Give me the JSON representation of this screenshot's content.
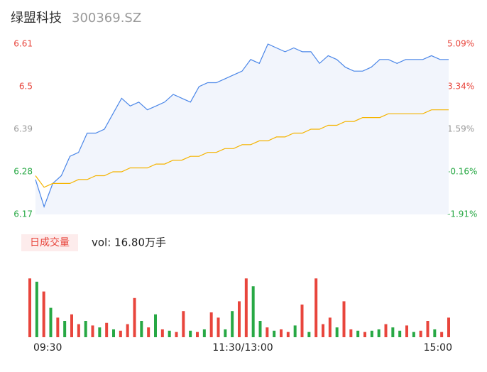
{
  "header": {
    "name": "绿盟科技",
    "code": "300369.SZ"
  },
  "chart_data": [
    {
      "type": "line",
      "x": [
        0,
        5,
        10,
        15,
        20,
        25,
        30,
        35,
        40,
        45,
        50,
        55,
        60,
        65,
        70,
        75,
        80,
        85,
        90,
        95,
        100,
        105,
        110,
        115,
        120,
        125,
        130,
        135,
        140,
        145,
        150,
        155,
        160,
        165,
        170,
        175,
        180,
        185,
        190,
        195,
        200,
        205,
        210,
        215,
        220,
        225,
        230,
        235,
        240
      ],
      "xlim": [
        0,
        240
      ],
      "series": [
        {
          "color": "#4a86e8",
          "values": [
            6.26,
            6.19,
            6.25,
            6.27,
            6.32,
            6.33,
            6.38,
            6.38,
            6.39,
            6.43,
            6.47,
            6.45,
            6.46,
            6.44,
            6.45,
            6.46,
            6.48,
            6.47,
            6.46,
            6.5,
            6.51,
            6.51,
            6.52,
            6.53,
            6.54,
            6.57,
            6.56,
            6.61,
            6.6,
            6.59,
            6.6,
            6.59,
            6.59,
            6.56,
            6.58,
            6.57,
            6.55,
            6.54,
            6.54,
            6.55,
            6.57,
            6.57,
            6.56,
            6.57,
            6.57,
            6.57,
            6.58,
            6.57,
            6.57
          ]
        },
        {
          "color": "#f5b400",
          "values": [
            6.27,
            6.24,
            6.25,
            6.25,
            6.25,
            6.26,
            6.26,
            6.27,
            6.27,
            6.28,
            6.28,
            6.29,
            6.29,
            6.29,
            6.3,
            6.3,
            6.31,
            6.31,
            6.32,
            6.32,
            6.33,
            6.33,
            6.34,
            6.34,
            6.35,
            6.35,
            6.36,
            6.36,
            6.37,
            6.37,
            6.38,
            6.38,
            6.39,
            6.39,
            6.4,
            6.4,
            6.41,
            6.41,
            6.42,
            6.42,
            6.42,
            6.43,
            6.43,
            6.43,
            6.43,
            6.43,
            6.44,
            6.44,
            6.44
          ]
        }
      ],
      "ylim": [
        6.17,
        6.61
      ],
      "yticks": [
        6.61,
        6.5,
        6.39,
        6.28,
        6.17
      ],
      "y2lim": [
        -1.91,
        5.09
      ],
      "y2ticks": [
        {
          "value": 5.09,
          "label": "5.09%"
        },
        {
          "value": 3.34,
          "label": "3.34%"
        },
        {
          "value": 1.59,
          "label": "1.59%"
        },
        {
          "value": -0.16,
          "label": "-0.16%"
        },
        {
          "value": -1.91,
          "label": "-1.91%"
        }
      ],
      "tick_colors": [
        "#e8453c",
        "#e8453c",
        "#999999",
        "#27a844",
        "#27a844"
      ]
    },
    {
      "type": "bar",
      "button": "日成交量",
      "label": "vol: 16.80万手",
      "x": [
        0,
        4,
        8,
        12,
        16,
        20,
        24,
        28,
        32,
        36,
        40,
        44,
        48,
        52,
        56,
        60,
        64,
        68,
        72,
        76,
        80,
        84,
        88,
        92,
        96,
        100,
        104,
        108,
        112,
        116,
        120,
        124,
        128,
        132,
        136,
        140,
        144,
        148,
        152,
        156,
        160,
        164,
        168,
        172,
        176,
        180,
        184,
        188,
        192,
        196,
        200,
        204,
        208,
        212,
        216,
        220,
        224,
        228,
        232,
        236,
        240
      ],
      "xlim": [
        0,
        240
      ],
      "values": [
        90,
        85,
        70,
        45,
        30,
        25,
        35,
        20,
        25,
        18,
        15,
        22,
        12,
        10,
        20,
        60,
        25,
        15,
        35,
        12,
        10,
        8,
        40,
        10,
        8,
        12,
        38,
        30,
        12,
        40,
        55,
        90,
        78,
        25,
        15,
        10,
        12,
        8,
        18,
        50,
        8,
        90,
        20,
        30,
        15,
        55,
        12,
        10,
        8,
        10,
        12,
        20,
        15,
        10,
        18,
        8,
        10,
        25,
        12,
        8,
        30
      ],
      "colors": [
        "#e8453c",
        "#27a844",
        "#e8453c",
        "#27a844",
        "#e8453c",
        "#27a844",
        "#e8453c",
        "#e8453c",
        "#27a844",
        "#e8453c",
        "#27a844",
        "#e8453c",
        "#27a844",
        "#e8453c",
        "#e8453c",
        "#e8453c",
        "#27a844",
        "#e8453c",
        "#27a844",
        "#e8453c",
        "#27a844",
        "#e8453c",
        "#e8453c",
        "#27a844",
        "#e8453c",
        "#27a844",
        "#e8453c",
        "#e8453c",
        "#27a844",
        "#27a844",
        "#e8453c",
        "#e8453c",
        "#27a844",
        "#27a844",
        "#e8453c",
        "#27a844",
        "#e8453c",
        "#e8453c",
        "#27a844",
        "#e8453c",
        "#27a844",
        "#e8453c",
        "#e8453c",
        "#e8453c",
        "#27a844",
        "#e8453c",
        "#e8453c",
        "#27a844",
        "#e8453c",
        "#27a844",
        "#27a844",
        "#e8453c",
        "#27a844",
        "#27a844",
        "#e8453c",
        "#27a844",
        "#e8453c",
        "#e8453c",
        "#27a844",
        "#e8453c",
        "#e8453c"
      ],
      "ylim": [
        0,
        100
      ],
      "xticks": [
        {
          "value": 0,
          "label": "09:30"
        },
        {
          "value": 120,
          "label": "11:30/13:00"
        },
        {
          "value": 240,
          "label": "15:00"
        }
      ]
    }
  ]
}
